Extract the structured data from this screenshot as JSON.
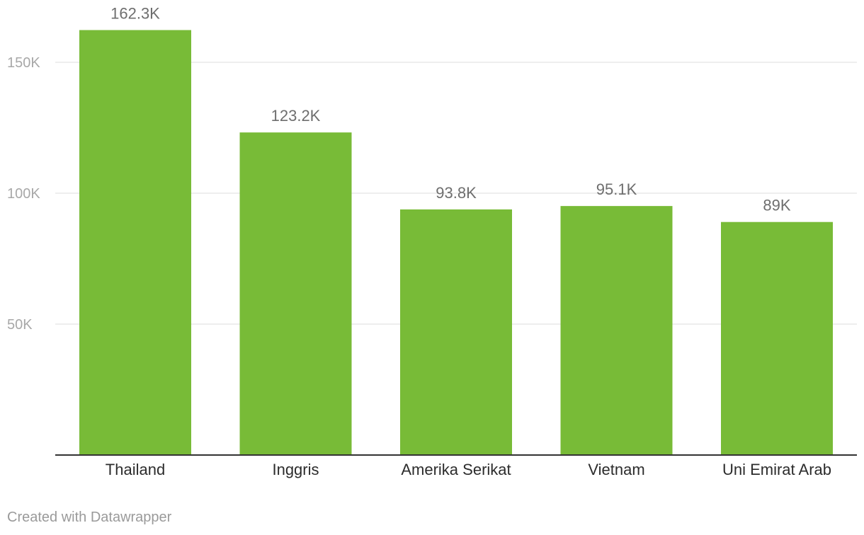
{
  "chart_data": {
    "type": "bar",
    "categories": [
      "Thailand",
      "Inggris",
      "Amerika Serikat",
      "Vietnam",
      "Uni Emirat Arab"
    ],
    "values": [
      162300,
      123200,
      93800,
      95100,
      89000
    ],
    "data_labels": [
      "162.3K",
      "123.2K",
      "93.8K",
      "95.1K",
      "89K"
    ],
    "y_ticks": [
      {
        "value": 50000,
        "label": "50K"
      },
      {
        "value": 100000,
        "label": "100K"
      },
      {
        "value": 150000,
        "label": "150K"
      }
    ],
    "ylim": [
      0,
      170000
    ],
    "grid": true,
    "legend": "none",
    "bar_color": "#78bb37",
    "title": "",
    "xlabel": "",
    "ylabel": ""
  },
  "footer": {
    "credit": "Created with Datawrapper"
  }
}
